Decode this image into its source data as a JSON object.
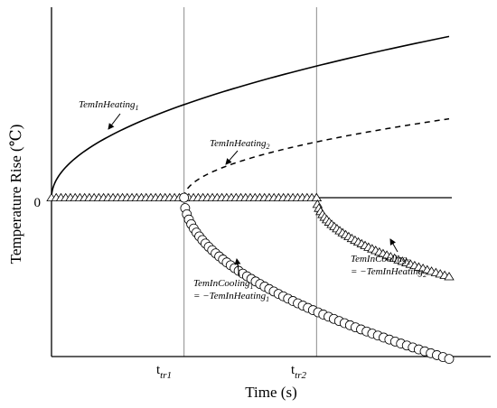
{
  "chart_data": {
    "type": "line",
    "xlabel": "Time (s)",
    "ylabel": "Temperature Rise (℃)",
    "x_ticks": [
      {
        "base": "t",
        "sub": "tr1",
        "x": 1
      },
      {
        "base": "t",
        "sub": "tr2",
        "x": 2
      }
    ],
    "y_ticks": [
      {
        "label": "0",
        "y": 0
      }
    ],
    "xlim": [
      0,
      3
    ],
    "ylim": [
      -1,
      1
    ],
    "grid": false,
    "legend": "none",
    "series": [
      {
        "key": "heating1",
        "style": "solid",
        "start": 0,
        "end": 3,
        "amplitude": 0.94
      },
      {
        "key": "heating2",
        "style": "dashed",
        "start": 1,
        "end": 3,
        "amplitude": 0.46
      },
      {
        "key": "cooling1",
        "style": "circle",
        "start": 1,
        "end": 3,
        "amplitude": -0.94
      },
      {
        "key": "cooling2",
        "style": "triangle",
        "start": 2,
        "end": 3,
        "amplitude": -0.46
      },
      {
        "key": "baseline",
        "style": "triangle",
        "start": 0,
        "end": 2,
        "value": 0
      }
    ],
    "annotations": {
      "heating1": {
        "base": "TemInHeating",
        "sub": "1"
      },
      "heating2": {
        "base": "TemInHeating",
        "sub": "2"
      },
      "cooling1": {
        "base": "TemInCooling",
        "sub": "1",
        "line2_prefix": "= −TemInHeating",
        "line2_sub": "1"
      },
      "cooling2": {
        "base": "TemInCooling",
        "sub": "2",
        "line2_prefix": "= −TemInHeating",
        "line2_sub": "2"
      }
    },
    "colors": {
      "line": "#000000",
      "marker_fill": "#ffffff",
      "vline": "#8c8c8c"
    }
  }
}
